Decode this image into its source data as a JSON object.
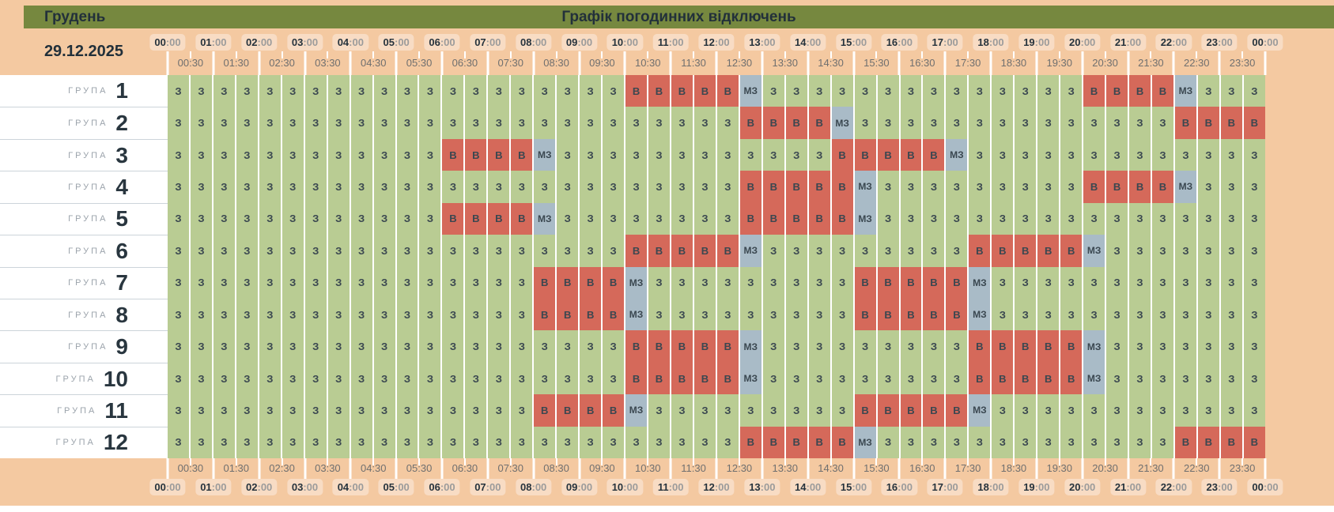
{
  "header": {
    "month": "Грудень",
    "title": "Графік погодинних відключень"
  },
  "date": "29.12.2025",
  "group_label": "ГРУПА",
  "time_scale": {
    "hours": [
      "00",
      "01",
      "02",
      "03",
      "04",
      "05",
      "06",
      "07",
      "08",
      "09",
      "10",
      "11",
      "12",
      "13",
      "14",
      "15",
      "16",
      "17",
      "18",
      "19",
      "20",
      "21",
      "22",
      "23",
      "00"
    ],
    "hour_suffix": ":00",
    "half_hours": [
      "00:30",
      "01:30",
      "02:30",
      "03:30",
      "04:30",
      "05:30",
      "06:30",
      "07:30",
      "08:30",
      "09:30",
      "10:30",
      "11:30",
      "12:30",
      "13:30",
      "14:30",
      "15:30",
      "16:30",
      "17:30",
      "18:30",
      "19:30",
      "20:30",
      "21:30",
      "22:30",
      "23:30"
    ]
  },
  "legend": {
    "З": "powered",
    "В": "outage",
    "МЗ": "possibly-powered"
  },
  "colors": {
    "powered": "#b9cc93",
    "outage": "#d5695a",
    "possibly_powered": "#a9bbc7",
    "accent_green": "#76883f",
    "band_peach": "#f4c9a1",
    "pill_peach": "#f8dcc4",
    "text_dark": "#22303a"
  },
  "groups": [
    {
      "number": "1",
      "segments": [
        [
          20,
          "З"
        ],
        [
          5,
          "В"
        ],
        [
          1,
          "МЗ"
        ],
        [
          14,
          "З"
        ],
        [
          4,
          "В"
        ],
        [
          1,
          "МЗ"
        ],
        [
          3,
          "З"
        ]
      ]
    },
    {
      "number": "2",
      "segments": [
        [
          25,
          "З"
        ],
        [
          4,
          "В"
        ],
        [
          1,
          "МЗ"
        ],
        [
          14,
          "З"
        ],
        [
          4,
          "В"
        ]
      ]
    },
    {
      "number": "3",
      "segments": [
        [
          12,
          "З"
        ],
        [
          4,
          "В"
        ],
        [
          1,
          "МЗ"
        ],
        [
          12,
          "З"
        ],
        [
          5,
          "В"
        ],
        [
          1,
          "МЗ"
        ],
        [
          13,
          "З"
        ]
      ]
    },
    {
      "number": "4",
      "segments": [
        [
          25,
          "З"
        ],
        [
          5,
          "В"
        ],
        [
          1,
          "МЗ"
        ],
        [
          9,
          "З"
        ],
        [
          4,
          "В"
        ],
        [
          1,
          "МЗ"
        ],
        [
          3,
          "З"
        ]
      ]
    },
    {
      "number": "5",
      "segments": [
        [
          12,
          "З"
        ],
        [
          4,
          "В"
        ],
        [
          1,
          "МЗ"
        ],
        [
          8,
          "З"
        ],
        [
          5,
          "В"
        ],
        [
          1,
          "МЗ"
        ],
        [
          17,
          "З"
        ]
      ]
    },
    {
      "number": "6",
      "segments": [
        [
          20,
          "З"
        ],
        [
          5,
          "В"
        ],
        [
          1,
          "МЗ"
        ],
        [
          9,
          "З"
        ],
        [
          5,
          "В"
        ],
        [
          1,
          "МЗ"
        ],
        [
          7,
          "З"
        ]
      ]
    },
    {
      "number": "7",
      "segments": [
        [
          16,
          "З"
        ],
        [
          4,
          "В"
        ],
        [
          1,
          "МЗ"
        ],
        [
          9,
          "З"
        ],
        [
          5,
          "В"
        ],
        [
          1,
          "МЗ"
        ],
        [
          12,
          "З"
        ]
      ]
    },
    {
      "number": "8",
      "segments": [
        [
          16,
          "З"
        ],
        [
          4,
          "В"
        ],
        [
          1,
          "МЗ"
        ],
        [
          9,
          "З"
        ],
        [
          5,
          "В"
        ],
        [
          1,
          "МЗ"
        ],
        [
          12,
          "З"
        ]
      ]
    },
    {
      "number": "9",
      "segments": [
        [
          20,
          "З"
        ],
        [
          5,
          "В"
        ],
        [
          1,
          "МЗ"
        ],
        [
          9,
          "З"
        ],
        [
          5,
          "В"
        ],
        [
          1,
          "МЗ"
        ],
        [
          7,
          "З"
        ]
      ]
    },
    {
      "number": "10",
      "segments": [
        [
          20,
          "З"
        ],
        [
          5,
          "В"
        ],
        [
          1,
          "МЗ"
        ],
        [
          9,
          "З"
        ],
        [
          5,
          "В"
        ],
        [
          1,
          "МЗ"
        ],
        [
          7,
          "З"
        ]
      ]
    },
    {
      "number": "11",
      "segments": [
        [
          16,
          "З"
        ],
        [
          4,
          "В"
        ],
        [
          1,
          "МЗ"
        ],
        [
          9,
          "З"
        ],
        [
          5,
          "В"
        ],
        [
          1,
          "МЗ"
        ],
        [
          12,
          "З"
        ]
      ]
    },
    {
      "number": "12",
      "segments": [
        [
          25,
          "З"
        ],
        [
          5,
          "В"
        ],
        [
          1,
          "МЗ"
        ],
        [
          13,
          "З"
        ],
        [
          4,
          "В"
        ]
      ]
    }
  ]
}
